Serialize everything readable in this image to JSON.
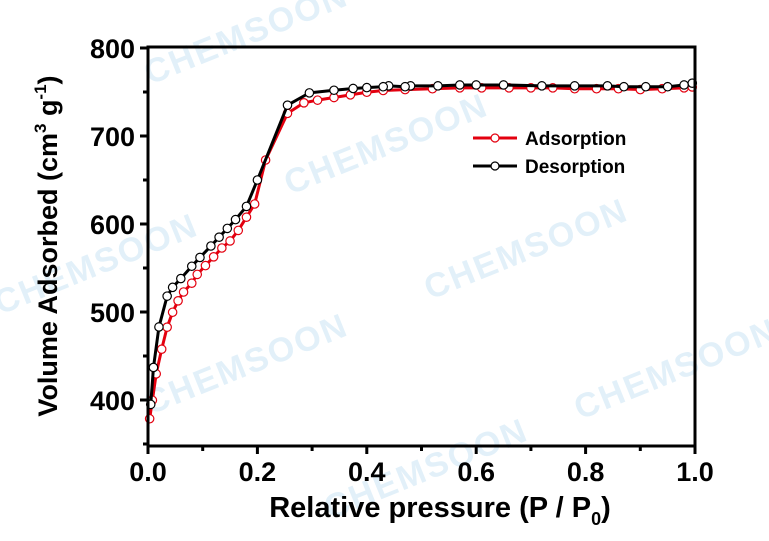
{
  "chart_data": {
    "type": "line",
    "title": "",
    "xlabel": "Relative pressure (P / P0)",
    "xlabel_parts": {
      "main": "Relative pressure (P / P",
      "sub": "0",
      "end": ")"
    },
    "ylabel": "Volume Adsorbed (cm3 g-1)",
    "ylabel_parts": {
      "main": "Volume Adsorbed (cm",
      "sup1": "3",
      "mid": " g",
      "sup2": "-1",
      "end": ")"
    },
    "xlim": [
      0.0,
      1.0
    ],
    "ylim": [
      348,
      800
    ],
    "xticks": [
      "0.0",
      "0.2",
      "0.4",
      "0.6",
      "0.8",
      "1.0"
    ],
    "yticks": [
      "400",
      "500",
      "600",
      "700",
      "800"
    ],
    "grid": false,
    "legend_position": "upper-right-inside",
    "legend": [
      "Adsorption",
      "Desorption"
    ],
    "watermark": "CHEMSOON",
    "series": [
      {
        "name": "Adsorption",
        "color": "#e3000f",
        "marker": "open-circle",
        "x": [
          0.003,
          0.008,
          0.015,
          0.025,
          0.035,
          0.045,
          0.055,
          0.065,
          0.08,
          0.09,
          0.105,
          0.12,
          0.135,
          0.15,
          0.165,
          0.18,
          0.195,
          0.215,
          0.255,
          0.285,
          0.31,
          0.34,
          0.37,
          0.4,
          0.43,
          0.47,
          0.52,
          0.57,
          0.61,
          0.66,
          0.7,
          0.74,
          0.78,
          0.82,
          0.86,
          0.9,
          0.94,
          0.98,
          0.995
        ],
        "values": [
          381,
          402,
          432,
          460,
          485,
          502,
          515,
          525,
          535,
          545,
          555,
          565,
          575,
          583,
          595,
          610,
          625,
          675,
          728,
          740,
          743,
          746,
          749,
          752,
          754,
          755,
          756,
          757,
          757,
          757,
          757,
          757,
          756,
          756,
          756,
          755,
          756,
          757,
          758
        ]
      },
      {
        "name": "Desorption",
        "color": "#000000",
        "marker": "open-circle",
        "x": [
          0.995,
          0.98,
          0.95,
          0.91,
          0.87,
          0.84,
          0.78,
          0.72,
          0.65,
          0.6,
          0.57,
          0.53,
          0.48,
          0.47,
          0.44,
          0.43,
          0.4,
          0.375,
          0.34,
          0.295,
          0.255,
          0.2,
          0.18,
          0.16,
          0.145,
          0.13,
          0.115,
          0.095,
          0.08,
          0.06,
          0.045,
          0.035,
          0.02,
          0.01,
          0.005
        ],
        "values": [
          760,
          758,
          756,
          756,
          756,
          757,
          757,
          757,
          758,
          758,
          758,
          757,
          757,
          756,
          757,
          756,
          755,
          754,
          752,
          749,
          735,
          650,
          620,
          605,
          595,
          585,
          575,
          562,
          552,
          538,
          528,
          518,
          483,
          437,
          395
        ]
      }
    ]
  }
}
